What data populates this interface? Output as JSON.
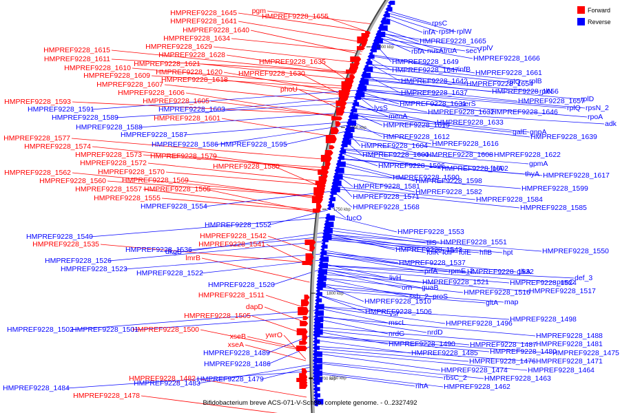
{
  "legend": {
    "forward": {
      "label": "Forward",
      "color": "#ff0000"
    },
    "reverse": {
      "label": "Reverse",
      "color": "#0000ff"
    }
  },
  "caption": "Bifidobacterium breve ACS-071-V-Sch8b, complete genome. - 0..2327492",
  "ticks": [
    "1000 kbp",
    "1050 kbp",
    "1750 kbp",
    "1800 kbp",
    "1750 kbp",
    "1700 kbp"
  ],
  "forward_labels": [
    "pgm",
    "HMPREF9228_1655",
    "HMPREF9228_1645",
    "HMPREF9228_1641",
    "HMPREF9228_1640",
    "HMPREF9228_1634",
    "HMPREF9228_1629",
    "HMPREF9228_1628",
    "HMPREF9228_1635",
    "HMPREF9228_1615",
    "HMPREF9228_1611",
    "HMPREF9228_1621",
    "HMPREF9228_1610",
    "HMPREF9228_1620",
    "HMPREF9228_1630",
    "HMPREF9228_1609",
    "HMPREF9228_1618",
    "HMPREF9228_1607",
    "phoU",
    "HMPREF9228_1606",
    "HMPREF9228_1593",
    "HMPREF9228_1605",
    "HMPREF9228_1601",
    "HMPREF9228_1577",
    "HMPREF9228_1574",
    "HMPREF9228_1573",
    "HMPREF9228_1579",
    "HMPREF9228_1572",
    "HMPREF9228_1580",
    "HMPREF9228_1562",
    "HMPREF9228_1570",
    "HMPREF9228_1560",
    "HMPREF9228_1569",
    "HMPREF9228_1557",
    "HMPREF9228_1565",
    "HMPREF9228_1555",
    "HMPREF9228_1542",
    "HMPREF9228_1535",
    "HMPREF9228_1541",
    "lmrB",
    "HMPREF9228_1511",
    "dapD",
    "HMPREF9228_1505",
    "HMPREF9228_1500",
    "ywrO",
    "xseB",
    "xseA",
    "HMPREF9228_1482",
    "HMPREF9228_1478"
  ],
  "reverse_labels": [
    "rpsC",
    "infA",
    "rpsH",
    "rplW",
    "HMPREF9228_1665",
    "rbfA",
    "nusA",
    "truA",
    "secY",
    "rplV",
    "HMPREF9228_1666",
    "HMPREF9228_1649",
    "HMPREF9228_1647",
    "infB",
    "HMPREF9228_1661",
    "HMPREF9228_1642",
    "HMPREF9228_1654",
    "rplQ",
    "rplB",
    "HMPREF9228_1637",
    "HMPREF9228_1656",
    "rplN",
    "HMPREF9228_1657",
    "rplD",
    "HMPREF9228_1631",
    "serS",
    "rplQ",
    "rpsN_2",
    "lysS",
    "HMPREF9228_1632",
    "HMPREF9228_1646",
    "rpoA",
    "menA",
    "adk",
    "HMPREF9228_1633",
    "HMPREF9228_1591",
    "HMPREF9228_1619",
    "HMPREF9228_1589",
    "galE",
    "gnpA",
    "HMPREF9228_1603",
    "HMPREF9228_1588",
    "HMPREF9228_1612",
    "HMPREF9228_1639",
    "HMPREF9228_1587",
    "HMPREF9228_1604",
    "HMPREF9228_1616",
    "HMPREF9228_1586",
    "HMPREF9228_1595",
    "HMPREF9228_1600",
    "HMPREF9228_1608",
    "HMPREF9228_1622",
    "HMPREF9228_1596",
    "gpmA",
    "HMPREF9228_1602",
    "folA",
    "HMPREF9228_1590",
    "thyA",
    "HMPREF9228_1617",
    "HMPREF9228_1598",
    "HMPREF9228_1581",
    "HMPREF9228_1599",
    "HMPREF9228_1582",
    "HMPREF9228_1571",
    "HMPREF9228_1584",
    "HMPREF9228_1554",
    "HMPREF9228_1568",
    "HMPREF9228_1585",
    "fucO",
    "HMPREF9228_1552",
    "HMPREF9228_1553",
    "HMPREF9228_1540",
    "tilS",
    "HMPREF9228_1551",
    "HMPREF9228_1543",
    "dkgB",
    "HMPREF9228_1536",
    "folK",
    "folP",
    "folE",
    "hflB",
    "hpt",
    "HMPREF9228_1550",
    "HMPREF9228_1526",
    "HMPREF9228_1537",
    "HMPREF9228_1523",
    "prfA",
    "rpmE_2",
    "HMPREF9228_1522",
    "livH",
    "HMPREF9228_1532",
    "glkA",
    "def_3",
    "HMPREF9228_1520",
    "orn",
    "guaB",
    "HMPREF9228_1521",
    "HMPREF9228_1524",
    "prmC",
    "ssb_2",
    "proS",
    "HMPREF9228_1516",
    "HMPREF9228_1517",
    "HMPREF9228_1510",
    "gltA",
    "map",
    "HMPREF9228_1506",
    "vsr",
    "HMPREF9228_1498",
    "mscL",
    "HMPREF9228_1496",
    "HMPREF9228_1502",
    "HMPREF9228_1501",
    "nrdG",
    "nrdD",
    "HMPREF9228_1488",
    "HMPREF9228_1490",
    "HMPREF9228_1487",
    "HMPREF9228_1481",
    "HMPREF9228_1489",
    "HMPREF9228_1485",
    "HMPREF9228_1480",
    "HMPREF9228_1475",
    "HMPREF9228_1486",
    "HMPREF9228_1476",
    "HMPREF9228_1471",
    "HMPREF9228_1474",
    "HMPREF9228_1464",
    "HMPREF9228_1479",
    "rbsC_2",
    "HMPREF9228_1463",
    "HMPREF9228_1483",
    "rihA",
    "HMPREF9228_1462",
    "HMPREF9228_1484"
  ]
}
